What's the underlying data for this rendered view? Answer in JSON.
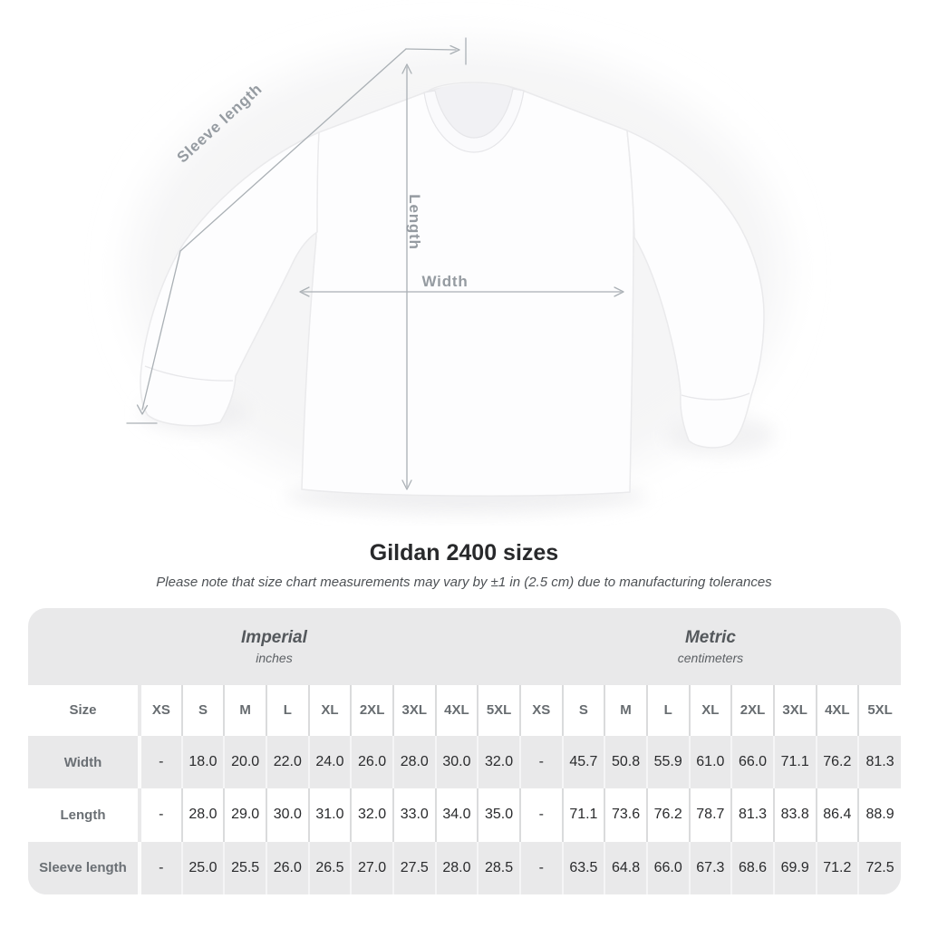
{
  "title": "Gildan 2400 sizes",
  "subtitle": "Please note that size chart measurements may vary by ±1 in (2.5 cm) due to manufacturing tolerances",
  "shirt_diagram": {
    "labels": {
      "sleeve_length": "Sleeve length",
      "length": "Length",
      "width": "Width"
    }
  },
  "table": {
    "size_header": "Size",
    "unit_sections": [
      {
        "name": "Imperial",
        "unit": "inches"
      },
      {
        "name": "Metric",
        "unit": "centimeters"
      }
    ],
    "sizes": [
      "XS",
      "S",
      "M",
      "L",
      "XL",
      "2XL",
      "3XL",
      "4XL",
      "5XL"
    ],
    "rows": [
      {
        "label": "Width",
        "imperial": [
          "-",
          "18.0",
          "20.0",
          "22.0",
          "24.0",
          "26.0",
          "28.0",
          "30.0",
          "32.0"
        ],
        "metric": [
          "-",
          "45.7",
          "50.8",
          "55.9",
          "61.0",
          "66.0",
          "71.1",
          "76.2",
          "81.3"
        ]
      },
      {
        "label": "Length",
        "imperial": [
          "-",
          "28.0",
          "29.0",
          "30.0",
          "31.0",
          "32.0",
          "33.0",
          "34.0",
          "35.0"
        ],
        "metric": [
          "-",
          "71.1",
          "73.6",
          "76.2",
          "78.7",
          "81.3",
          "83.8",
          "86.4",
          "88.9"
        ]
      },
      {
        "label": "Sleeve length",
        "imperial": [
          "-",
          "25.0",
          "25.5",
          "26.0",
          "26.5",
          "27.0",
          "27.5",
          "28.0",
          "28.5"
        ],
        "metric": [
          "-",
          "63.5",
          "64.8",
          "66.0",
          "67.3",
          "68.6",
          "69.9",
          "71.2",
          "72.5"
        ]
      }
    ]
  },
  "chart_data": {
    "type": "table",
    "title": "Gildan 2400 sizes",
    "note": "Measurements may vary by ±1 in (2.5 cm) due to manufacturing tolerances",
    "column_groups": [
      {
        "name": "Imperial",
        "unit": "inches",
        "sizes": [
          "XS",
          "S",
          "M",
          "L",
          "XL",
          "2XL",
          "3XL",
          "4XL",
          "5XL"
        ]
      },
      {
        "name": "Metric",
        "unit": "centimeters",
        "sizes": [
          "XS",
          "S",
          "M",
          "L",
          "XL",
          "2XL",
          "3XL",
          "4XL",
          "5XL"
        ]
      }
    ],
    "rows": [
      {
        "measurement": "Width",
        "imperial_inches": [
          null,
          18.0,
          20.0,
          22.0,
          24.0,
          26.0,
          28.0,
          30.0,
          32.0
        ],
        "metric_cm": [
          null,
          45.7,
          50.8,
          55.9,
          61.0,
          66.0,
          71.1,
          76.2,
          81.3
        ]
      },
      {
        "measurement": "Length",
        "imperial_inches": [
          null,
          28.0,
          29.0,
          30.0,
          31.0,
          32.0,
          33.0,
          34.0,
          35.0
        ],
        "metric_cm": [
          null,
          71.1,
          73.6,
          76.2,
          78.7,
          81.3,
          83.8,
          86.4,
          88.9
        ]
      },
      {
        "measurement": "Sleeve length",
        "imperial_inches": [
          null,
          25.0,
          25.5,
          26.0,
          26.5,
          27.0,
          27.5,
          28.0,
          28.5
        ],
        "metric_cm": [
          null,
          63.5,
          64.8,
          66.0,
          67.3,
          68.6,
          69.9,
          71.2,
          72.5
        ]
      }
    ]
  }
}
